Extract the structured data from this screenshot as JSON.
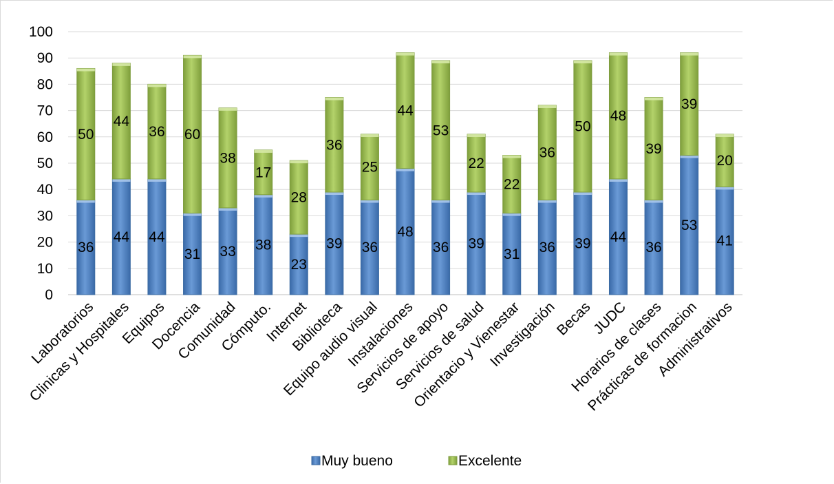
{
  "chart_data": {
    "type": "bar",
    "stacked": true,
    "title": "",
    "xlabel": "",
    "ylabel": "",
    "ylim": [
      0,
      100
    ],
    "yticks": [
      0,
      10,
      20,
      30,
      40,
      50,
      60,
      70,
      80,
      90,
      100
    ],
    "grid": true,
    "legend_position": "bottom",
    "categories": [
      "Laboratorios",
      "Clinicas y Hospitales",
      "Equipos",
      "Docencia",
      "Comunidad",
      "Cómputo.",
      "Internet",
      "Biblioteca",
      "Equipo audio visual",
      "Instalaciones",
      "Servicios de apoyo",
      "Servicios de salud",
      "Orientacio y Vienestar",
      "Investigación",
      "Becas",
      "JUDC",
      "Horarios de clases",
      "Prácticas de formacion",
      "Administrativos"
    ],
    "series": [
      {
        "name": "Muy bueno",
        "color": "#4f81bd",
        "values": [
          36,
          44,
          44,
          31,
          33,
          38,
          23,
          39,
          36,
          48,
          36,
          39,
          31,
          36,
          39,
          44,
          36,
          53,
          41
        ]
      },
      {
        "name": "Excelente",
        "color": "#9bbb59",
        "values": [
          50,
          44,
          36,
          60,
          38,
          17,
          28,
          36,
          25,
          44,
          53,
          22,
          22,
          36,
          50,
          48,
          39,
          39,
          20
        ]
      }
    ]
  }
}
